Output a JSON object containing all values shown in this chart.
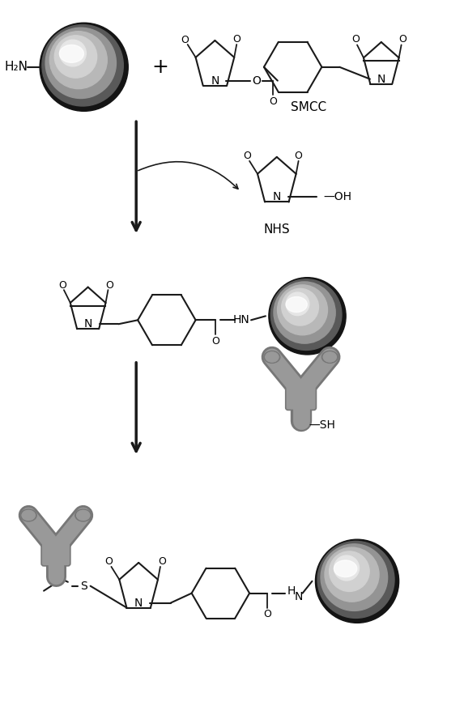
{
  "bg_color": "#ffffff",
  "line_color": "#1a1a1a",
  "text_color": "#000000",
  "gray_color": "#888888",
  "sphere_colors": [
    "#111111",
    "#666666",
    "#aaaaaa",
    "#cccccc",
    "#eeeeee"
  ],
  "antibody_color": "#999999",
  "antibody_edge": "#777777",
  "smcc_label": "SMCC",
  "nhs_label": "NHS",
  "sh_label": "—SH",
  "h2n_label": "H₂N",
  "arrow_color": "#000000",
  "font_size": 10,
  "fig_width": 5.73,
  "fig_height": 8.67,
  "dpi": 100
}
